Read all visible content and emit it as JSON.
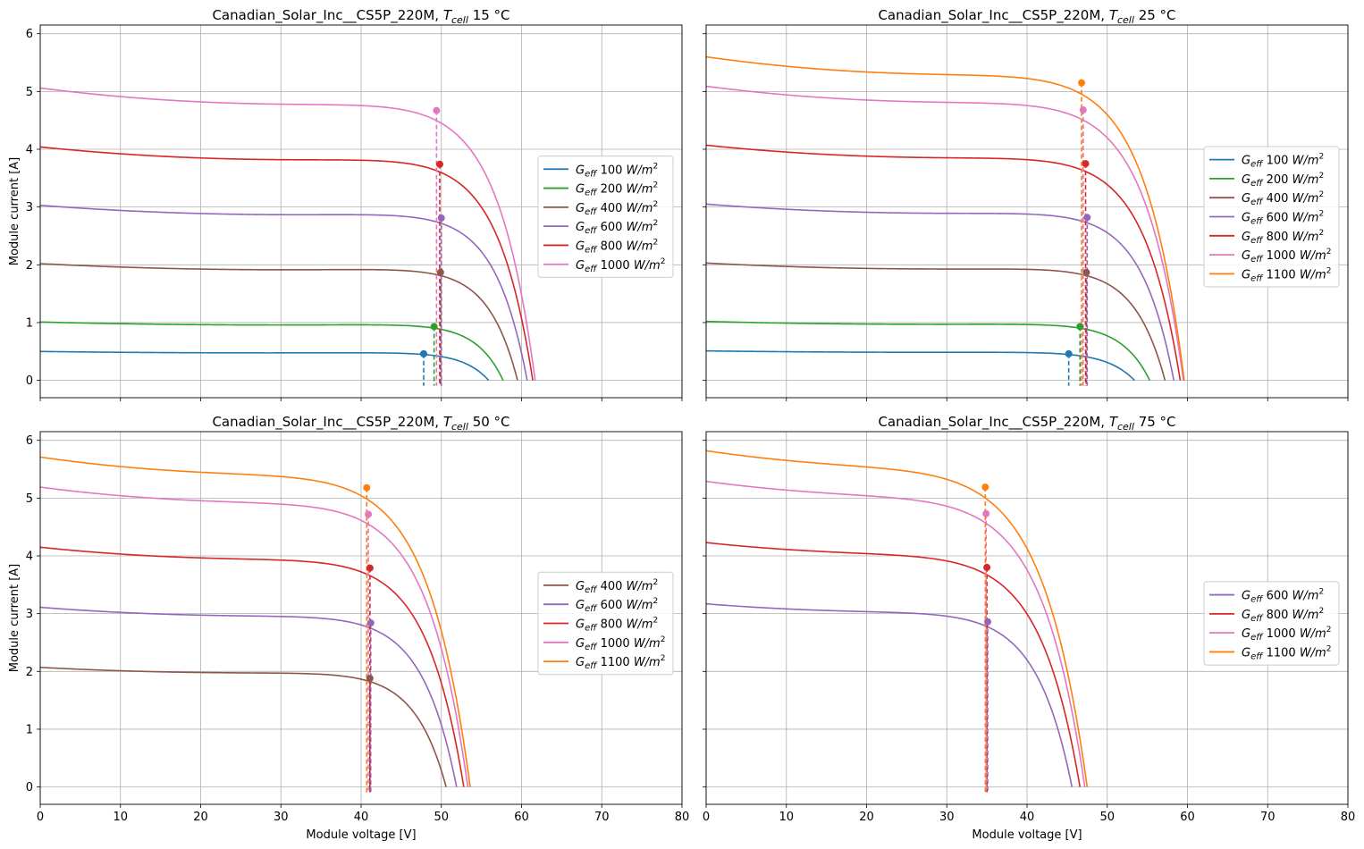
{
  "figure": {
    "shared_xlabel": "Module voltage [V]",
    "shared_ylabel": "Module current [A]",
    "irradiance_unit": "W/m",
    "irradiance_unit_sup": "2",
    "g_symbol": "G",
    "g_sub": "eff"
  },
  "chart_data": [
    {
      "type": "line",
      "title_prefix": "Canadian_Solar_Inc__CS5P_220M, ",
      "title_sym": "T",
      "title_sub": "cell",
      "title_suffix": " 15 °C",
      "xlabel": "",
      "ylabel": "Module current [A]",
      "xlim": [
        0,
        80
      ],
      "ylim": [
        -0.3,
        6.15
      ],
      "xticks": [
        0,
        10,
        20,
        30,
        40,
        50,
        60,
        70,
        80
      ],
      "yticks": [
        0,
        1,
        2,
        3,
        4,
        5,
        6
      ],
      "show_xticklabels": false,
      "show_yticklabels": true,
      "grid": true,
      "legend_position": "center-right",
      "series": [
        {
          "name": "100",
          "color": "#1f77b4",
          "isc": 0.5,
          "voc": 55.9,
          "vmp": 47.8,
          "imp": 0.46
        },
        {
          "name": "200",
          "color": "#2ca02c",
          "isc": 1.01,
          "voc": 57.7,
          "vmp": 49.1,
          "imp": 0.93
        },
        {
          "name": "400",
          "color": "#8c564b",
          "isc": 2.02,
          "voc": 59.5,
          "vmp": 49.9,
          "imp": 1.87
        },
        {
          "name": "600",
          "color": "#9467bd",
          "isc": 3.03,
          "voc": 60.7,
          "vmp": 50.0,
          "imp": 2.81
        },
        {
          "name": "800",
          "color": "#d62728",
          "isc": 4.04,
          "voc": 61.4,
          "vmp": 49.8,
          "imp": 3.74
        },
        {
          "name": "1000",
          "color": "#e377c2",
          "isc": 5.06,
          "voc": 61.7,
          "vmp": 49.4,
          "imp": 4.67
        }
      ]
    },
    {
      "type": "line",
      "title_prefix": "Canadian_Solar_Inc__CS5P_220M, ",
      "title_sym": "T",
      "title_sub": "cell",
      "title_suffix": " 25 °C",
      "xlabel": "",
      "ylabel": "",
      "xlim": [
        0,
        80
      ],
      "ylim": [
        -0.3,
        6.15
      ],
      "xticks": [
        0,
        10,
        20,
        30,
        40,
        50,
        60,
        70,
        80
      ],
      "yticks": [
        0,
        1,
        2,
        3,
        4,
        5,
        6
      ],
      "show_xticklabels": false,
      "show_yticklabels": false,
      "grid": true,
      "legend_position": "center-right",
      "series": [
        {
          "name": "100",
          "color": "#1f77b4",
          "isc": 0.51,
          "voc": 53.4,
          "vmp": 45.2,
          "imp": 0.46
        },
        {
          "name": "200",
          "color": "#2ca02c",
          "isc": 1.02,
          "voc": 55.3,
          "vmp": 46.6,
          "imp": 0.93
        },
        {
          "name": "400",
          "color": "#8c564b",
          "isc": 2.03,
          "voc": 57.2,
          "vmp": 47.4,
          "imp": 1.87
        },
        {
          "name": "600",
          "color": "#9467bd",
          "isc": 3.05,
          "voc": 58.3,
          "vmp": 47.5,
          "imp": 2.82
        },
        {
          "name": "800",
          "color": "#d62728",
          "isc": 4.07,
          "voc": 59.1,
          "vmp": 47.3,
          "imp": 3.75
        },
        {
          "name": "1000",
          "color": "#e377c2",
          "isc": 5.09,
          "voc": 59.5,
          "vmp": 47.0,
          "imp": 4.68
        },
        {
          "name": "1100",
          "color": "#ff7f0e",
          "isc": 5.6,
          "voc": 59.6,
          "vmp": 46.8,
          "imp": 5.15
        }
      ]
    },
    {
      "type": "line",
      "title_prefix": "Canadian_Solar_Inc__CS5P_220M, ",
      "title_sym": "T",
      "title_sub": "cell",
      "title_suffix": " 50 °C",
      "xlabel": "Module voltage [V]",
      "ylabel": "Module current [A]",
      "xlim": [
        0,
        80
      ],
      "ylim": [
        -0.3,
        6.15
      ],
      "xticks": [
        0,
        10,
        20,
        30,
        40,
        50,
        60,
        70,
        80
      ],
      "yticks": [
        0,
        1,
        2,
        3,
        4,
        5,
        6
      ],
      "show_xticklabels": true,
      "show_yticklabels": true,
      "grid": true,
      "legend_position": "center-right",
      "series": [
        {
          "name": "400",
          "color": "#8c564b",
          "isc": 2.07,
          "voc": 50.6,
          "vmp": 41.1,
          "imp": 1.88
        },
        {
          "name": "600",
          "color": "#9467bd",
          "isc": 3.11,
          "voc": 51.9,
          "vmp": 41.2,
          "imp": 2.84
        },
        {
          "name": "800",
          "color": "#d62728",
          "isc": 4.15,
          "voc": 52.8,
          "vmp": 41.1,
          "imp": 3.79
        },
        {
          "name": "1000",
          "color": "#e377c2",
          "isc": 5.19,
          "voc": 53.3,
          "vmp": 40.9,
          "imp": 4.72
        },
        {
          "name": "1100",
          "color": "#ff7f0e",
          "isc": 5.71,
          "voc": 53.6,
          "vmp": 40.7,
          "imp": 5.18
        }
      ]
    },
    {
      "type": "line",
      "title_prefix": "Canadian_Solar_Inc__CS5P_220M, ",
      "title_sym": "T",
      "title_sub": "cell",
      "title_suffix": " 75 °C",
      "xlabel": "Module voltage [V]",
      "ylabel": "",
      "xlim": [
        0,
        80
      ],
      "ylim": [
        -0.3,
        6.15
      ],
      "xticks": [
        0,
        10,
        20,
        30,
        40,
        50,
        60,
        70,
        80
      ],
      "yticks": [
        0,
        1,
        2,
        3,
        4,
        5,
        6
      ],
      "show_xticklabels": true,
      "show_yticklabels": false,
      "grid": true,
      "legend_position": "center-right",
      "series": [
        {
          "name": "600",
          "color": "#9467bd",
          "isc": 3.17,
          "voc": 45.6,
          "vmp": 35.1,
          "imp": 2.86
        },
        {
          "name": "800",
          "color": "#d62728",
          "isc": 4.23,
          "voc": 46.6,
          "vmp": 35.0,
          "imp": 3.8
        },
        {
          "name": "1000",
          "color": "#e377c2",
          "isc": 5.29,
          "voc": 47.2,
          "vmp": 34.9,
          "imp": 4.73
        },
        {
          "name": "1100",
          "color": "#ff7f0e",
          "isc": 5.82,
          "voc": 47.5,
          "vmp": 34.8,
          "imp": 5.19
        }
      ]
    }
  ]
}
